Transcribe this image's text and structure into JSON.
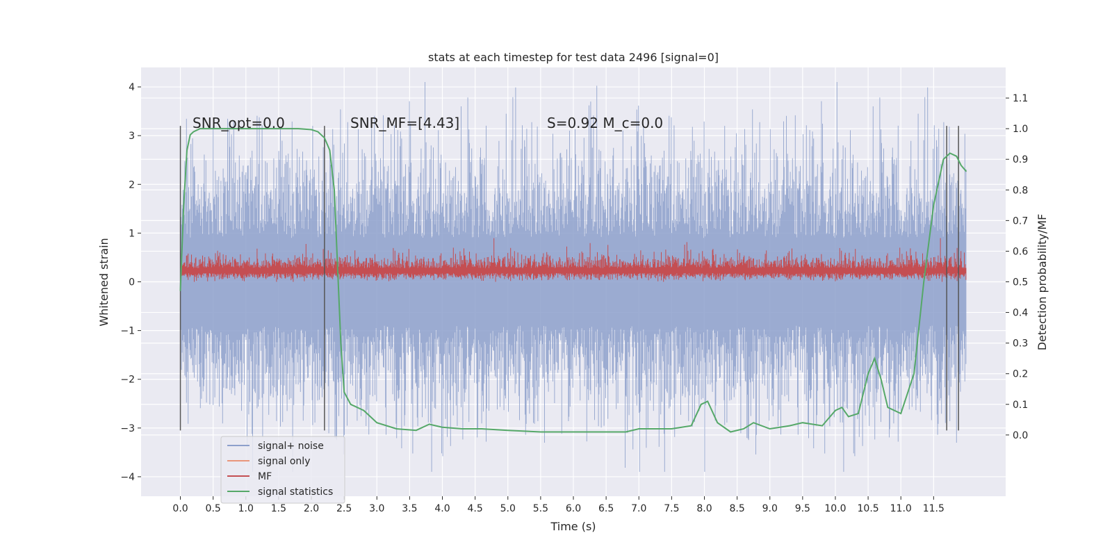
{
  "chart_data": {
    "type": "line",
    "title": "stats at each timestep for test data 2496 [signal=0]",
    "xlabel": "Time (s)",
    "ylabel": "Whitened strain",
    "y2label": "Detection probability/MF",
    "xlim": [
      -0.6,
      12.6
    ],
    "ylim": [
      -4.4,
      4.4
    ],
    "y2lim": [
      -0.2,
      1.2
    ],
    "grid": true,
    "background": "#eaeaf2",
    "x_ticks": [
      "0.0",
      "0.5",
      "1.0",
      "1.5",
      "2.0",
      "2.5",
      "3.0",
      "3.5",
      "4.0",
      "4.5",
      "5.0",
      "5.5",
      "6.0",
      "6.5",
      "7.0",
      "7.5",
      "8.0",
      "8.5",
      "9.0",
      "9.5",
      "10.0",
      "10.5",
      "11.0",
      "11.5"
    ],
    "x_tick_values": [
      0,
      0.5,
      1,
      1.5,
      2,
      2.5,
      3,
      3.5,
      4,
      4.5,
      5,
      5.5,
      6,
      6.5,
      7,
      7.5,
      8,
      8.5,
      9,
      9.5,
      10,
      10.5,
      11,
      11.5
    ],
    "y_ticks": [
      "4",
      "3",
      "2",
      "1",
      "0",
      "−1",
      "−2",
      "−3",
      "−4"
    ],
    "y_tick_values": [
      4,
      3,
      2,
      1,
      0,
      -1,
      -2,
      -3,
      -4
    ],
    "y2_ticks": [
      "1.1",
      "1.0",
      "0.9",
      "0.8",
      "0.7",
      "0.6",
      "0.5",
      "0.4",
      "0.3",
      "0.2",
      "0.1",
      "0.0"
    ],
    "y2_tick_values": [
      1.1,
      1.0,
      0.9,
      0.8,
      0.7,
      0.6,
      0.5,
      0.4,
      0.3,
      0.2,
      0.1,
      0.0
    ],
    "annotations": [
      {
        "text": "SNR_opt=0.0",
        "x": 0.2
      },
      {
        "text": "SNR_MF=[4.43]",
        "x": 2.6
      },
      {
        "text": "S=0.92   M_c=0.0",
        "x": 5.6
      }
    ],
    "vlines": [
      0.0,
      2.2,
      11.7,
      11.88
    ],
    "vline_range": [
      -3.05,
      3.2
    ],
    "legend": {
      "position": "lower-left",
      "entries": [
        {
          "name": "signal+ noise",
          "color": "#8da0cb"
        },
        {
          "name": "signal only",
          "color": "#e9967a"
        },
        {
          "name": "MF",
          "color": "#c44e52"
        },
        {
          "name": "signal statistics",
          "color": "#55a868"
        }
      ]
    },
    "series": [
      {
        "name": "signal+ noise",
        "axis": "left",
        "style": "noise-fill",
        "color": "#8da0cb",
        "x_range": [
          0,
          12.0
        ],
        "approx_envelope_upper": 2.6,
        "approx_envelope_lower": -2.4,
        "max_value": 4.1,
        "min_value": -3.9
      },
      {
        "name": "signal only",
        "axis": "left",
        "color": "#e9967a",
        "x": [],
        "y": []
      },
      {
        "name": "MF",
        "axis": "left",
        "style": "noise-band",
        "color": "#c44e52",
        "x_range": [
          0,
          12.0
        ],
        "approx_band": [
          0.0,
          0.65
        ],
        "max_value": 1.0
      },
      {
        "name": "signal statistics",
        "axis": "right",
        "color": "#55a868",
        "x": [
          0.0,
          0.05,
          0.1,
          0.15,
          0.2,
          0.3,
          0.5,
          1.0,
          1.5,
          1.8,
          2.0,
          2.1,
          2.2,
          2.28,
          2.35,
          2.4,
          2.45,
          2.5,
          2.6,
          2.8,
          3.0,
          3.3,
          3.6,
          3.8,
          4.0,
          4.3,
          4.6,
          5.0,
          5.5,
          6.0,
          6.5,
          6.8,
          7.0,
          7.5,
          7.8,
          7.95,
          8.05,
          8.2,
          8.4,
          8.6,
          8.75,
          9.0,
          9.3,
          9.5,
          9.8,
          10.0,
          10.1,
          10.2,
          10.35,
          10.5,
          10.6,
          10.7,
          10.8,
          11.0,
          11.2,
          11.35,
          11.5,
          11.65,
          11.75,
          11.85,
          11.92,
          12.0
        ],
        "y": [
          0.47,
          0.75,
          0.93,
          0.98,
          0.99,
          1.0,
          1.0,
          1.0,
          1.0,
          1.0,
          0.997,
          0.99,
          0.97,
          0.93,
          0.8,
          0.55,
          0.3,
          0.14,
          0.1,
          0.08,
          0.04,
          0.02,
          0.015,
          0.035,
          0.025,
          0.02,
          0.02,
          0.015,
          0.01,
          0.01,
          0.01,
          0.01,
          0.02,
          0.02,
          0.03,
          0.1,
          0.11,
          0.04,
          0.01,
          0.02,
          0.04,
          0.02,
          0.03,
          0.04,
          0.03,
          0.08,
          0.09,
          0.06,
          0.07,
          0.2,
          0.25,
          0.18,
          0.09,
          0.07,
          0.2,
          0.5,
          0.75,
          0.9,
          0.92,
          0.91,
          0.88,
          0.86
        ]
      }
    ]
  }
}
